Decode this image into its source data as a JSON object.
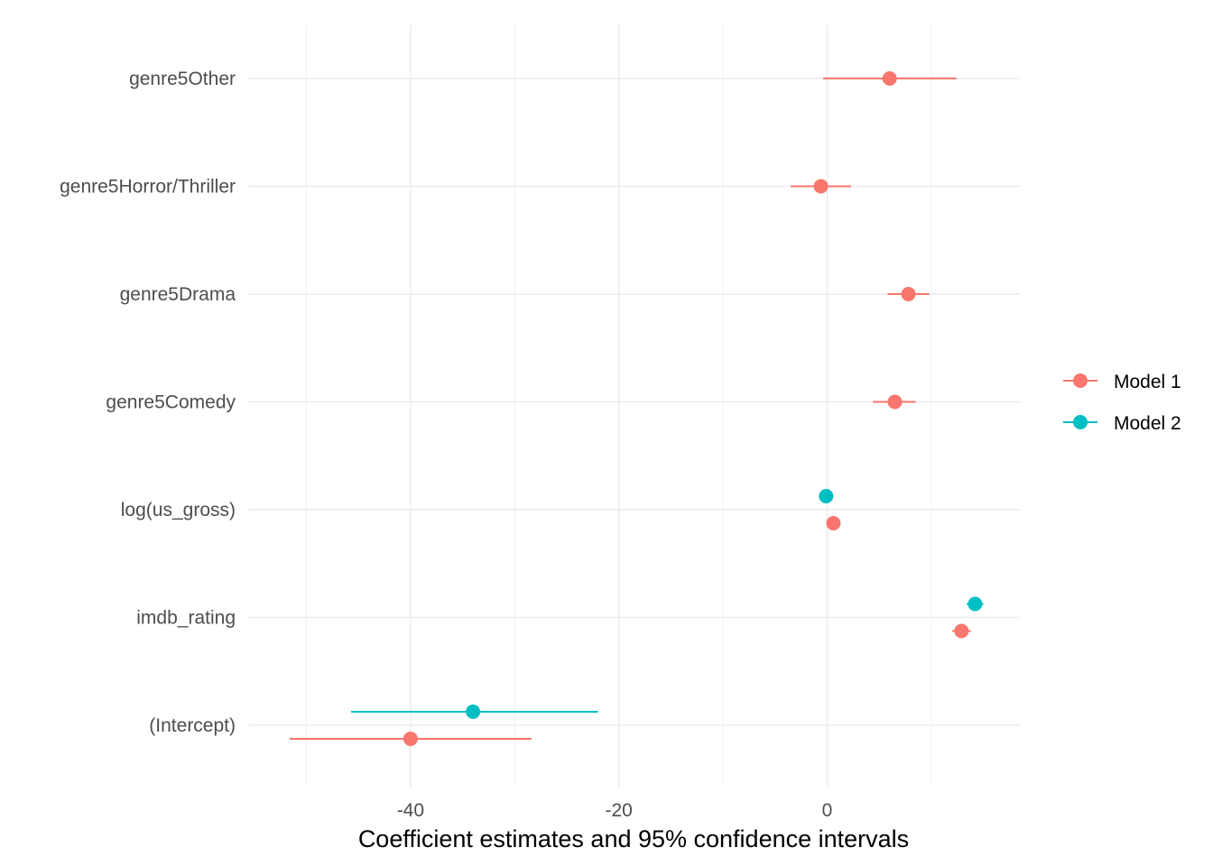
{
  "chart_data": {
    "type": "scatter",
    "subtype": "coefficient-plot-with-confidence-intervals",
    "title": "",
    "xlabel": "Coefficient estimates and 95% confidence intervals",
    "ylabel": "",
    "xlim": [
      -55.5,
      18.5
    ],
    "x_ticks": [
      -40,
      -20,
      0
    ],
    "grid": true,
    "legend_position": "right",
    "categories": [
      "genre5Other",
      "genre5Horror/Thriller",
      "genre5Drama",
      "genre5Comedy",
      "log(us_gross)",
      "imdb_rating",
      "(Intercept)"
    ],
    "series": [
      {
        "name": "Model 1",
        "color": "#F8766D",
        "points": [
          {
            "term": "genre5Other",
            "estimate": 6.0,
            "low": -0.4,
            "high": 12.4
          },
          {
            "term": "genre5Horror/Thriller",
            "estimate": -0.6,
            "low": -3.5,
            "high": 2.3
          },
          {
            "term": "genre5Drama",
            "estimate": 7.8,
            "low": 5.8,
            "high": 9.8
          },
          {
            "term": "genre5Comedy",
            "estimate": 6.5,
            "low": 4.4,
            "high": 8.5
          },
          {
            "term": "log(us_gross)",
            "estimate": 0.6,
            "low": 0.4,
            "high": 0.8
          },
          {
            "term": "imdb_rating",
            "estimate": 12.9,
            "low": 12.0,
            "high": 13.8
          },
          {
            "term": "(Intercept)",
            "estimate": -40.0,
            "low": -51.6,
            "high": -28.4
          }
        ]
      },
      {
        "name": "Model 2",
        "color": "#00BFC4",
        "points": [
          {
            "term": "log(us_gross)",
            "estimate": -0.1,
            "low": -0.3,
            "high": 0.1
          },
          {
            "term": "imdb_rating",
            "estimate": 14.2,
            "low": 13.4,
            "high": 15.0
          },
          {
            "term": "(Intercept)",
            "estimate": -34.0,
            "low": -45.7,
            "high": -22.0
          }
        ]
      }
    ]
  }
}
